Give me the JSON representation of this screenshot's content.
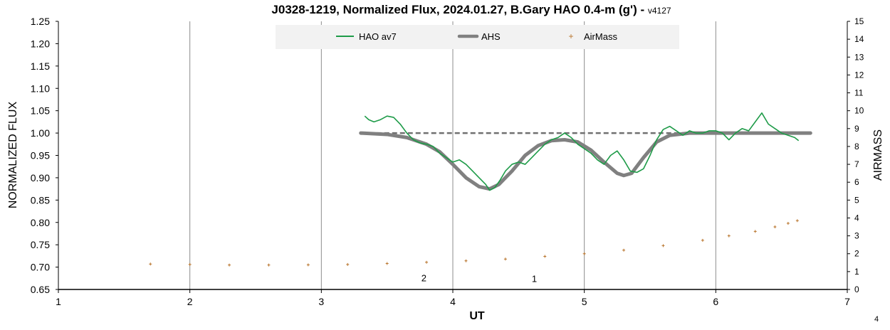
{
  "chart_data": {
    "type": "line",
    "title": "J0328-1219, Normalized Flux, 2024.01.27, B.Gary HAO 0.4-m (g')",
    "title_suffix": " - ",
    "version": "v4127",
    "xlabel": "UT",
    "ylabel": "NORMALIZED FLUX",
    "y2label": "AIRMASS",
    "xlim": [
      1,
      7
    ],
    "ylim": [
      0.65,
      1.25
    ],
    "y2lim": [
      0,
      15
    ],
    "x_ticks": [
      "1",
      "2",
      "3",
      "4",
      "5",
      "6",
      "7"
    ],
    "y_ticks": [
      "0.65",
      "0.70",
      "0.75",
      "0.80",
      "0.85",
      "0.90",
      "0.95",
      "1.00",
      "1.05",
      "1.10",
      "1.15",
      "1.20",
      "1.25"
    ],
    "y2_ticks": [
      "0",
      "1",
      "2",
      "3",
      "4",
      "5",
      "6",
      "7",
      "8",
      "9",
      "10",
      "11",
      "12",
      "13",
      "14",
      "15"
    ],
    "grid": "vertical",
    "legend_position": "top",
    "colors": {
      "hao": "#1e9b48",
      "ahs": "#808080",
      "airmass": "#b8732a",
      "dashed": "#707070"
    },
    "series": [
      {
        "name": "HAO av7",
        "axis": "left",
        "x": [
          3.33,
          3.36,
          3.4,
          3.45,
          3.5,
          3.55,
          3.6,
          3.65,
          3.7,
          3.75,
          3.8,
          3.85,
          3.9,
          3.95,
          4.0,
          4.05,
          4.1,
          4.15,
          4.2,
          4.25,
          4.28,
          4.32,
          4.36,
          4.4,
          4.45,
          4.5,
          4.55,
          4.6,
          4.65,
          4.7,
          4.75,
          4.8,
          4.85,
          4.9,
          4.95,
          5.0,
          5.05,
          5.1,
          5.15,
          5.2,
          5.25,
          5.3,
          5.35,
          5.4,
          5.45,
          5.5,
          5.55,
          5.6,
          5.65,
          5.7,
          5.75,
          5.8,
          5.85,
          5.9,
          5.95,
          6.0,
          6.05,
          6.1,
          6.15,
          6.2,
          6.25,
          6.3,
          6.35,
          6.4,
          6.45,
          6.5,
          6.55,
          6.6,
          6.63
        ],
        "values": [
          1.038,
          1.03,
          1.025,
          1.03,
          1.038,
          1.035,
          1.02,
          1.0,
          0.985,
          0.978,
          0.975,
          0.97,
          0.955,
          0.945,
          0.935,
          0.94,
          0.93,
          0.915,
          0.9,
          0.885,
          0.872,
          0.878,
          0.895,
          0.915,
          0.93,
          0.935,
          0.93,
          0.945,
          0.96,
          0.975,
          0.985,
          0.99,
          1.0,
          0.99,
          0.975,
          0.965,
          0.955,
          0.94,
          0.93,
          0.95,
          0.96,
          0.94,
          0.915,
          0.912,
          0.92,
          0.95,
          0.985,
          1.008,
          1.015,
          1.005,
          0.995,
          1.005,
          1.0,
          1.0,
          1.005,
          1.005,
          1.0,
          0.985,
          1.0,
          1.01,
          1.005,
          1.025,
          1.045,
          1.02,
          1.01,
          1.0,
          0.995,
          0.99,
          0.983
        ]
      },
      {
        "name": "AHS",
        "axis": "left",
        "x": [
          3.3,
          3.5,
          3.65,
          3.8,
          3.9,
          4.0,
          4.1,
          4.2,
          4.28,
          4.35,
          4.45,
          4.55,
          4.65,
          4.75,
          4.85,
          4.95,
          5.05,
          5.15,
          5.25,
          5.3,
          5.36,
          5.45,
          5.55,
          5.65,
          5.8,
          6.0,
          6.2,
          6.4,
          6.6,
          6.72
        ],
        "values": [
          1.0,
          0.997,
          0.99,
          0.975,
          0.958,
          0.93,
          0.9,
          0.88,
          0.875,
          0.885,
          0.915,
          0.95,
          0.972,
          0.983,
          0.985,
          0.98,
          0.962,
          0.935,
          0.91,
          0.905,
          0.91,
          0.945,
          0.98,
          0.995,
          1.0,
          1.0,
          1.0,
          1.0,
          1.0,
          1.0
        ]
      },
      {
        "name": "AirMass",
        "axis": "right",
        "x": [
          1.7,
          2.0,
          2.3,
          2.6,
          2.9,
          3.2,
          3.5,
          3.8,
          4.1,
          4.4,
          4.7,
          5.0,
          5.3,
          5.6,
          5.9,
          6.1,
          6.3,
          6.45,
          6.55,
          6.62
        ],
        "values": [
          1.42,
          1.4,
          1.37,
          1.37,
          1.38,
          1.4,
          1.45,
          1.52,
          1.6,
          1.7,
          1.85,
          2.0,
          2.2,
          2.45,
          2.75,
          3.0,
          3.25,
          3.5,
          3.7,
          3.85
        ]
      }
    ],
    "reference_line": {
      "style": "dashed",
      "value": 1.0,
      "x": [
        3.3,
        6.72
      ]
    },
    "annotations": [
      {
        "text": "2",
        "x": 3.78,
        "y": 0.668
      },
      {
        "text": "1",
        "x": 4.62,
        "y": 0.667
      }
    ]
  },
  "page_number": "4"
}
